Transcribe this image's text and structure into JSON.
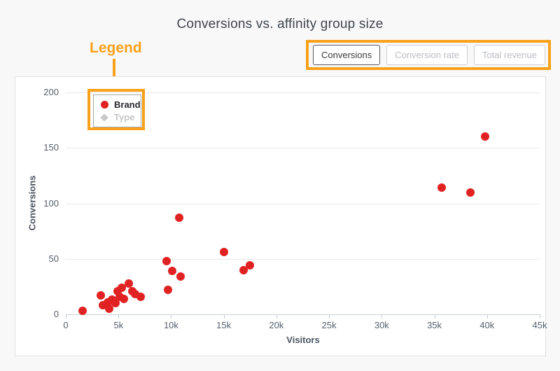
{
  "header": {
    "title": "Conversions vs. affinity group size",
    "annotation_label": "Legend"
  },
  "toolbar": {
    "buttons": [
      {
        "label": "Conversions",
        "active": true
      },
      {
        "label": "Conversion rate",
        "active": false
      },
      {
        "label": "Total revenue",
        "active": false
      }
    ]
  },
  "colors": {
    "highlight_orange": "#F9A11B",
    "series_red": "#E12222",
    "inactive_gray": "#C6C6C6",
    "gridline": "#E7E7E7",
    "axis_line": "#C8D0D8"
  },
  "chart_data": {
    "type": "scatter",
    "title": "Conversions vs. affinity group size",
    "xlabel": "Visitors",
    "ylabel": "Conversions",
    "xlim": [
      0,
      45000
    ],
    "ylim": [
      0,
      200
    ],
    "grid": "horizontal-only",
    "legend_position": "top-left-inside",
    "x_ticks": [
      {
        "value": 0,
        "label": "0"
      },
      {
        "value": 5000,
        "label": "5k"
      },
      {
        "value": 10000,
        "label": "10k"
      },
      {
        "value": 15000,
        "label": "15k"
      },
      {
        "value": 20000,
        "label": "20k"
      },
      {
        "value": 25000,
        "label": "25k"
      },
      {
        "value": 30000,
        "label": "30k"
      },
      {
        "value": 35000,
        "label": "35k"
      },
      {
        "value": 40000,
        "label": "40k"
      },
      {
        "value": 45000,
        "label": "45k"
      }
    ],
    "y_ticks": [
      {
        "value": 0,
        "label": "0"
      },
      {
        "value": 50,
        "label": "50"
      },
      {
        "value": 100,
        "label": "100"
      },
      {
        "value": 150,
        "label": "150"
      },
      {
        "value": 200,
        "label": "200"
      }
    ],
    "legend": [
      {
        "name": "Brand",
        "marker": "circle",
        "color": "#E12222",
        "enabled": true
      },
      {
        "name": "Type",
        "marker": "diamond",
        "color": "#C9C9C9",
        "enabled": false
      }
    ],
    "series": [
      {
        "name": "Brand",
        "color": "#E12222",
        "points": [
          [
            1600,
            3
          ],
          [
            3300,
            17
          ],
          [
            3500,
            8
          ],
          [
            4000,
            11
          ],
          [
            4100,
            5
          ],
          [
            4400,
            13
          ],
          [
            4700,
            10
          ],
          [
            4900,
            21
          ],
          [
            5100,
            16
          ],
          [
            5300,
            24
          ],
          [
            5500,
            14
          ],
          [
            6000,
            28
          ],
          [
            6300,
            21
          ],
          [
            6600,
            18
          ],
          [
            7100,
            16
          ],
          [
            9600,
            48
          ],
          [
            9700,
            22
          ],
          [
            10100,
            39
          ],
          [
            10800,
            87
          ],
          [
            10900,
            34
          ],
          [
            15000,
            56
          ],
          [
            16900,
            40
          ],
          [
            17500,
            44
          ],
          [
            35700,
            114
          ],
          [
            38400,
            110
          ],
          [
            39800,
            160
          ]
        ]
      }
    ]
  }
}
